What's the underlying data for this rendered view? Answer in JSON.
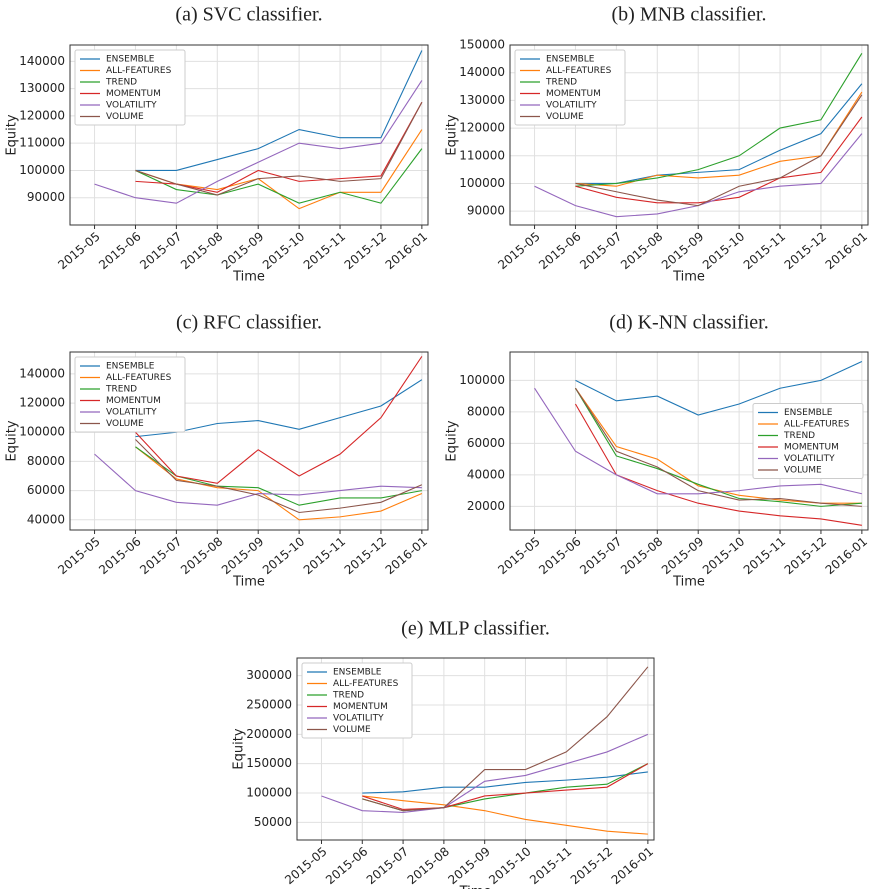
{
  "chart_data": [
    {
      "type": "line",
      "title": "(a) SVC classifier.",
      "x_label": "Time",
      "y_label": "Equity",
      "x": [
        "2015-05",
        "2015-06",
        "2015-07",
        "2015-08",
        "2015-09",
        "2015-10",
        "2015-11",
        "2015-12",
        "2016-01"
      ],
      "xticks": [
        "2015-05",
        "2015-06",
        "2015-07",
        "2015-08",
        "2015-09",
        "2015-10",
        "2015-11",
        "2015-12",
        "2016-01"
      ],
      "ylim": [
        80000,
        146000
      ],
      "yticks": [
        90000,
        100000,
        110000,
        120000,
        130000,
        140000
      ],
      "grid": true,
      "legend": "upper left",
      "series": [
        {
          "name": "ENSEMBLE",
          "color": "#1f77b4",
          "values": [
            null,
            100000,
            100000,
            104000,
            108000,
            115000,
            112000,
            112000,
            144000
          ]
        },
        {
          "name": "ALL-FEATURES",
          "color": "#ff7f0e",
          "values": [
            null,
            100000,
            95000,
            93000,
            97000,
            86000,
            92000,
            92000,
            115000
          ]
        },
        {
          "name": "TREND",
          "color": "#2ca02c",
          "values": [
            null,
            100000,
            93000,
            91000,
            95000,
            88000,
            92000,
            88000,
            108000
          ]
        },
        {
          "name": "MOMENTUM",
          "color": "#d62728",
          "values": [
            null,
            96000,
            95000,
            92000,
            100000,
            96000,
            97000,
            98000,
            125000
          ]
        },
        {
          "name": "VOLATILITY",
          "color": "#9467bd",
          "values": [
            95000,
            90000,
            88000,
            96000,
            103000,
            110000,
            108000,
            110000,
            133000
          ]
        },
        {
          "name": "VOLUME",
          "color": "#8c564b",
          "values": [
            null,
            100000,
            95000,
            91000,
            97000,
            98000,
            96000,
            97000,
            125000
          ]
        }
      ]
    },
    {
      "type": "line",
      "title": "(b) MNB classifier.",
      "x_label": "Time",
      "y_label": "Equity",
      "x": [
        "2015-05",
        "2015-06",
        "2015-07",
        "2015-08",
        "2015-09",
        "2015-10",
        "2015-11",
        "2015-12",
        "2016-01"
      ],
      "xticks": [
        "2015-05",
        "2015-06",
        "2015-07",
        "2015-08",
        "2015-09",
        "2015-10",
        "2015-11",
        "2015-12",
        "2016-01"
      ],
      "ylim": [
        85000,
        150000
      ],
      "yticks": [
        90000,
        100000,
        110000,
        120000,
        130000,
        140000,
        150000
      ],
      "grid": true,
      "legend": "upper left",
      "series": [
        {
          "name": "ENSEMBLE",
          "color": "#1f77b4",
          "values": [
            null,
            100000,
            100000,
            103000,
            104000,
            105000,
            112000,
            118000,
            136000
          ]
        },
        {
          "name": "ALL-FEATURES",
          "color": "#ff7f0e",
          "values": [
            null,
            100000,
            99000,
            103000,
            102000,
            103000,
            108000,
            110000,
            133000
          ]
        },
        {
          "name": "TREND",
          "color": "#2ca02c",
          "values": [
            null,
            99000,
            100000,
            102000,
            105000,
            110000,
            120000,
            123000,
            147000
          ]
        },
        {
          "name": "MOMENTUM",
          "color": "#d62728",
          "values": [
            null,
            99000,
            95000,
            93000,
            93000,
            95000,
            102000,
            104000,
            124000
          ]
        },
        {
          "name": "VOLATILITY",
          "color": "#9467bd",
          "values": [
            99000,
            92000,
            88000,
            89000,
            92000,
            97000,
            99000,
            100000,
            118000
          ]
        },
        {
          "name": "VOLUME",
          "color": "#8c564b",
          "values": [
            null,
            100000,
            97000,
            94000,
            92000,
            99000,
            102000,
            110000,
            132000
          ]
        }
      ]
    },
    {
      "type": "line",
      "title": "(c) RFC classifier.",
      "x_label": "Time",
      "y_label": "Equity",
      "x": [
        "2015-05",
        "2015-06",
        "2015-07",
        "2015-08",
        "2015-09",
        "2015-10",
        "2015-11",
        "2015-12",
        "2016-01"
      ],
      "xticks": [
        "2015-05",
        "2015-06",
        "2015-07",
        "2015-08",
        "2015-09",
        "2015-10",
        "2015-11",
        "2015-12",
        "2016-01"
      ],
      "ylim": [
        33000,
        155000
      ],
      "yticks": [
        40000,
        60000,
        80000,
        100000,
        120000,
        140000
      ],
      "grid": true,
      "legend": "upper left",
      "series": [
        {
          "name": "ENSEMBLE",
          "color": "#1f77b4",
          "values": [
            null,
            97000,
            100000,
            106000,
            108000,
            102000,
            110000,
            118000,
            136000
          ]
        },
        {
          "name": "ALL-FEATURES",
          "color": "#ff7f0e",
          "values": [
            null,
            90000,
            68000,
            62000,
            60000,
            40000,
            42000,
            46000,
            58000
          ]
        },
        {
          "name": "TREND",
          "color": "#2ca02c",
          "values": [
            null,
            90000,
            70000,
            63000,
            62000,
            50000,
            55000,
            55000,
            60000
          ]
        },
        {
          "name": "MOMENTUM",
          "color": "#d62728",
          "values": [
            null,
            100000,
            70000,
            65000,
            88000,
            70000,
            85000,
            110000,
            152000
          ]
        },
        {
          "name": "VOLATILITY",
          "color": "#9467bd",
          "values": [
            85000,
            60000,
            52000,
            50000,
            58000,
            57000,
            60000,
            63000,
            62000
          ]
        },
        {
          "name": "VOLUME",
          "color": "#8c564b",
          "values": [
            null,
            95000,
            67000,
            63000,
            57000,
            45000,
            48000,
            52000,
            64000
          ]
        }
      ]
    },
    {
      "type": "line",
      "title": "(d) K-NN classifier.",
      "x_label": "Time",
      "y_label": "Equity",
      "x": [
        "2015-05",
        "2015-06",
        "2015-07",
        "2015-08",
        "2015-09",
        "2015-10",
        "2015-11",
        "2015-12",
        "2016-01"
      ],
      "xticks": [
        "2015-05",
        "2015-06",
        "2015-07",
        "2015-08",
        "2015-09",
        "2015-10",
        "2015-11",
        "2015-12",
        "2016-01"
      ],
      "ylim": [
        5000,
        118000
      ],
      "yticks": [
        20000,
        40000,
        60000,
        80000,
        100000
      ],
      "grid": true,
      "legend": "center right",
      "series": [
        {
          "name": "ENSEMBLE",
          "color": "#1f77b4",
          "values": [
            null,
            100000,
            87000,
            90000,
            78000,
            85000,
            95000,
            100000,
            112000
          ]
        },
        {
          "name": "ALL-FEATURES",
          "color": "#ff7f0e",
          "values": [
            null,
            95000,
            58000,
            50000,
            33000,
            27000,
            24000,
            22000,
            22000
          ]
        },
        {
          "name": "TREND",
          "color": "#2ca02c",
          "values": [
            null,
            95000,
            52000,
            44000,
            34000,
            25000,
            23000,
            20000,
            22000
          ]
        },
        {
          "name": "MOMENTUM",
          "color": "#d62728",
          "values": [
            null,
            85000,
            40000,
            30000,
            22000,
            17000,
            14000,
            12000,
            8000
          ]
        },
        {
          "name": "VOLATILITY",
          "color": "#9467bd",
          "values": [
            95000,
            55000,
            40000,
            28000,
            28000,
            30000,
            33000,
            34000,
            28000
          ]
        },
        {
          "name": "VOLUME",
          "color": "#8c564b",
          "values": [
            null,
            95000,
            55000,
            45000,
            30000,
            24000,
            25000,
            22000,
            20000
          ]
        }
      ]
    },
    {
      "type": "line",
      "title": "(e) MLP classifier.",
      "x_label": "Time",
      "y_label": "Equity",
      "x": [
        "2015-05",
        "2015-06",
        "2015-07",
        "2015-08",
        "2015-09",
        "2015-10",
        "2015-11",
        "2015-12",
        "2016-01"
      ],
      "xticks": [
        "2015-05",
        "2015-06",
        "2015-07",
        "2015-08",
        "2015-09",
        "2015-10",
        "2015-11",
        "2015-12",
        "2016-01"
      ],
      "ylim": [
        20000,
        330000
      ],
      "yticks": [
        50000,
        100000,
        150000,
        200000,
        250000,
        300000
      ],
      "grid": true,
      "legend": "upper left",
      "series": [
        {
          "name": "ENSEMBLE",
          "color": "#1f77b4",
          "values": [
            null,
            100000,
            102000,
            110000,
            110000,
            118000,
            122000,
            127000,
            136000
          ]
        },
        {
          "name": "ALL-FEATURES",
          "color": "#ff7f0e",
          "values": [
            null,
            95000,
            87000,
            80000,
            70000,
            55000,
            45000,
            35000,
            30000
          ]
        },
        {
          "name": "TREND",
          "color": "#2ca02c",
          "values": [
            null,
            90000,
            70000,
            75000,
            90000,
            100000,
            110000,
            115000,
            150000
          ]
        },
        {
          "name": "MOMENTUM",
          "color": "#d62728",
          "values": [
            null,
            95000,
            72000,
            75000,
            95000,
            100000,
            105000,
            110000,
            150000
          ]
        },
        {
          "name": "VOLATILITY",
          "color": "#9467bd",
          "values": [
            95000,
            70000,
            67000,
            75000,
            120000,
            130000,
            150000,
            170000,
            200000
          ]
        },
        {
          "name": "VOLUME",
          "color": "#8c564b",
          "values": [
            null,
            90000,
            70000,
            75000,
            140000,
            140000,
            170000,
            230000,
            315000
          ]
        }
      ]
    }
  ]
}
